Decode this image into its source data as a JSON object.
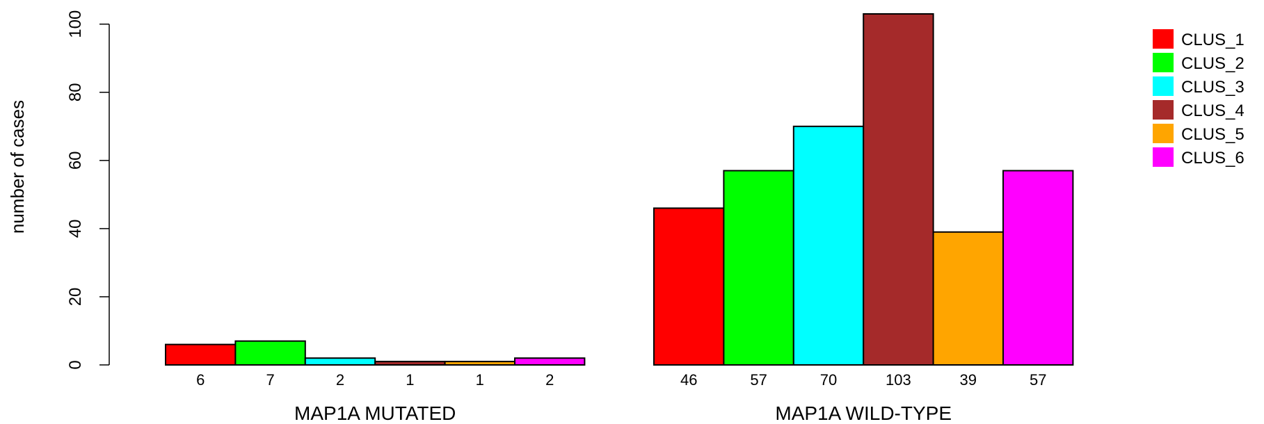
{
  "chart_data": {
    "type": "bar",
    "ylabel": "number of cases",
    "ylim": [
      0,
      103
    ],
    "yticks": [
      0,
      20,
      40,
      60,
      80,
      100
    ],
    "groups": [
      {
        "label": "MAP1A MUTATED",
        "values": [
          6,
          7,
          2,
          1,
          1,
          2
        ]
      },
      {
        "label": "MAP1A WILD-TYPE",
        "values": [
          46,
          57,
          70,
          103,
          39,
          57
        ]
      }
    ],
    "series": [
      {
        "name": "CLUS_1",
        "color": "#ff0000"
      },
      {
        "name": "CLUS_2",
        "color": "#00ff00"
      },
      {
        "name": "CLUS_3",
        "color": "#00ffff"
      },
      {
        "name": "CLUS_4",
        "color": "#a52a2a"
      },
      {
        "name": "CLUS_5",
        "color": "#ffa500"
      },
      {
        "name": "CLUS_6",
        "color": "#ff00ff"
      }
    ],
    "legend_position": "top-right",
    "grid": false
  }
}
